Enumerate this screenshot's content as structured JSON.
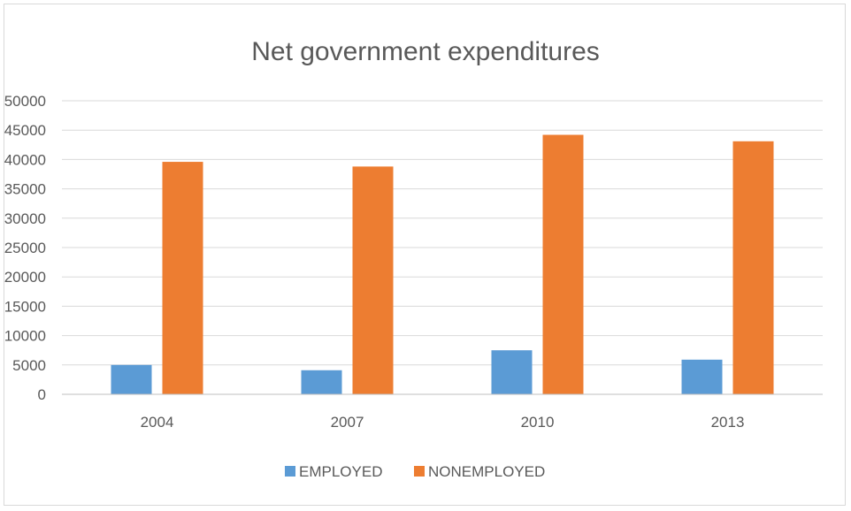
{
  "chart_data": {
    "type": "bar",
    "title": "Net government expenditures",
    "categories": [
      "2004",
      "2007",
      "2010",
      "2013"
    ],
    "series": [
      {
        "name": "EMPLOYED",
        "color": "#5b9bd5",
        "values": [
          5000,
          4100,
          7500,
          5900
        ]
      },
      {
        "name": "NONEMPLOYED",
        "color": "#ed7d31",
        "values": [
          39600,
          38800,
          44200,
          43100
        ]
      }
    ],
    "ylim": [
      0,
      50000
    ],
    "yticks": [
      "0",
      "5000",
      "10000",
      "15000",
      "20000",
      "25000",
      "30000",
      "35000",
      "40000",
      "45000",
      "50000"
    ],
    "grid": true,
    "legend_position": "bottom"
  }
}
